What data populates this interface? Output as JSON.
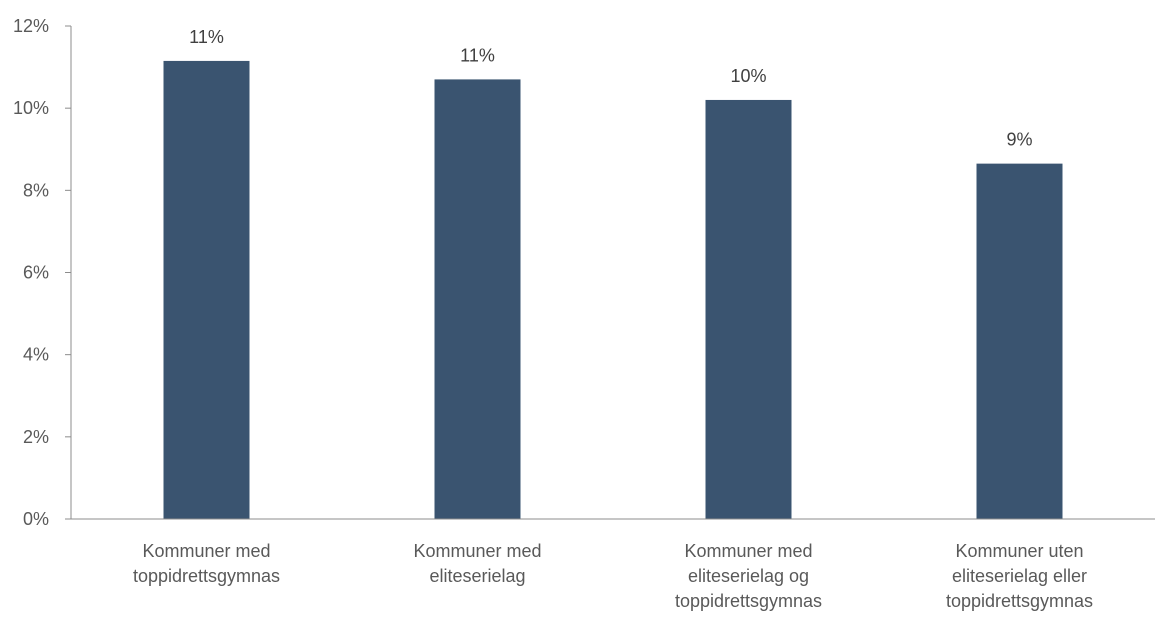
{
  "chart_data": {
    "type": "bar",
    "title": "",
    "xlabel": "",
    "ylabel": "",
    "categories": [
      [
        "Kommuner med",
        "toppidrettsgymnas"
      ],
      [
        "Kommuner med",
        "eliteserielag"
      ],
      [
        "Kommuner med",
        "eliteserielag og",
        "toppidrettsgymnas"
      ],
      [
        "Kommuner uten",
        "eliteserielag eller",
        "toppidrettsgymnas"
      ]
    ],
    "values": [
      11.15,
      10.7,
      10.2,
      8.65
    ],
    "data_labels": [
      "11%",
      "11%",
      "10%",
      "9%"
    ],
    "ylim": [
      0,
      12
    ],
    "y_ticks": [
      0,
      2,
      4,
      6,
      8,
      10,
      12
    ],
    "y_tick_labels": [
      "0%",
      "2%",
      "4%",
      "6%",
      "8%",
      "10%",
      "12%"
    ],
    "bar_color": "#3a5470",
    "axis_color": "#8c8c8c",
    "grid": false,
    "legend": "none"
  }
}
